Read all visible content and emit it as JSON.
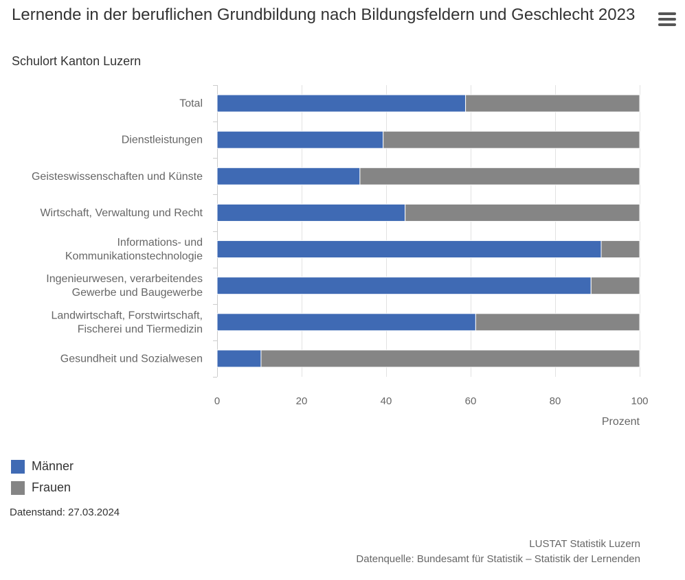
{
  "header": {
    "title": "Lernende in der beruflichen Grundbildung nach Bildungsfeldern und Geschlecht 2023",
    "subtitle": "Schulort Kanton Luzern",
    "menu_icon": "hamburger-menu-icon"
  },
  "colors": {
    "maenner": "#3f6ab4",
    "frauen": "#858585",
    "grid": "#e2e2e2",
    "axis_text": "#666666"
  },
  "chart_data": {
    "type": "bar",
    "orientation": "horizontal",
    "stacked": true,
    "title": "Lernende in der beruflichen Grundbildung nach Bildungsfeldern und Geschlecht 2023",
    "subtitle": "Schulort Kanton Luzern",
    "categories": [
      "Total",
      "Dienstleistungen",
      "Geisteswissenschaften und Künste",
      "Wirtschaft, Verwaltung und Recht",
      "Informations- und Kommunikationstechnologie",
      "Ingenieurwesen, verarbeitendes Gewerbe und Baugewerbe",
      "Landwirtschaft, Forstwirtschaft, Fischerei und Tiermedizin",
      "Gesundheit und Sozialwesen"
    ],
    "category_lines": [
      [
        "Total"
      ],
      [
        "Dienstleistungen"
      ],
      [
        "Geisteswissenschaften und Künste"
      ],
      [
        "Wirtschaft, Verwaltung und Recht"
      ],
      [
        "Informations- und",
        "Kommunikationstechnologie"
      ],
      [
        "Ingenieurwesen, verarbeitendes",
        "Gewerbe und Baugewerbe"
      ],
      [
        "Landwirtschaft, Forstwirtschaft,",
        "Fischerei und Tiermedizin"
      ],
      [
        "Gesundheit und Sozialwesen"
      ]
    ],
    "series": [
      {
        "name": "Männer",
        "color": "#3f6ab4",
        "values": [
          58.8,
          39.3,
          33.8,
          44.5,
          90.9,
          88.5,
          61.2,
          10.4
        ]
      },
      {
        "name": "Frauen",
        "color": "#858585",
        "values": [
          41.2,
          60.7,
          66.2,
          55.5,
          9.1,
          11.5,
          38.8,
          89.6
        ]
      }
    ],
    "xlabel": "Prozent",
    "xlim": [
      0,
      100
    ],
    "xticks": [
      0,
      20,
      40,
      60,
      80,
      100
    ],
    "grid": true,
    "legend": "bottom-left"
  },
  "footer": {
    "datenstand": "Datenstand: 27.03.2024",
    "credits_line1": "LUSTAT Statistik Luzern",
    "credits_line2": "Datenquelle: Bundesamt für Statistik – Statistik der Lernenden"
  }
}
